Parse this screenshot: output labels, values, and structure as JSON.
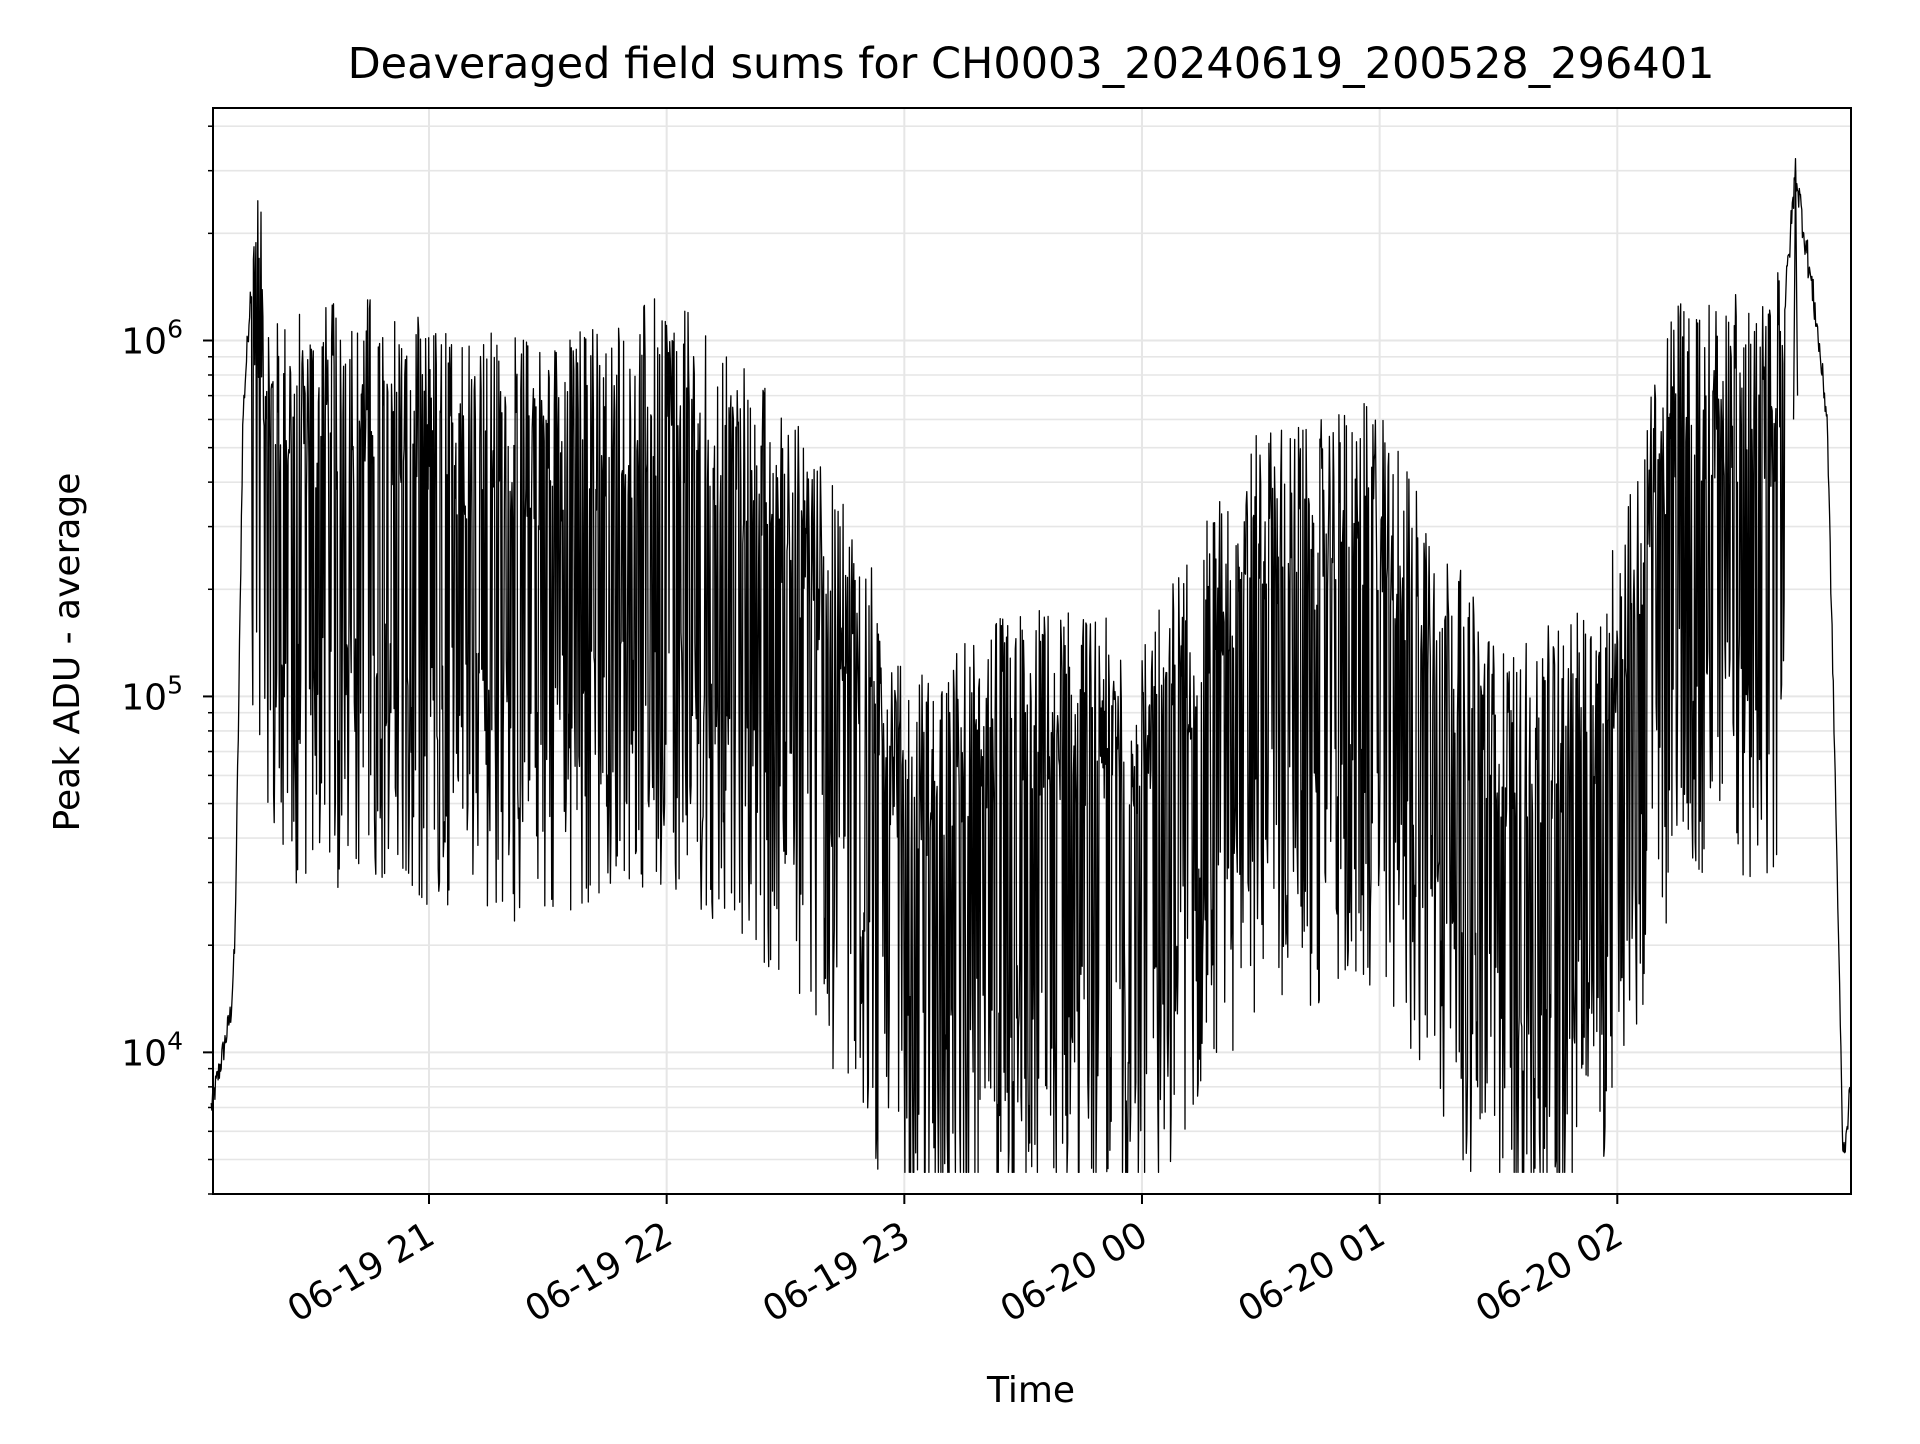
{
  "chart_data": {
    "type": "line",
    "title": "Deaveraged field sums for CH0003_20240619_200528_296401",
    "xlabel": "Time",
    "ylabel": "Peak ADU - average",
    "yscale": "log",
    "ylim": [
      4000,
      4500000
    ],
    "xlim": [
      "2024-06-19 20:05:28",
      "2024-06-20 02:59:00"
    ],
    "grid": true,
    "line_color": "#000000",
    "grid_color": "#e6e6e6",
    "x_tick_labels": [
      "06-19 21",
      "06-19 22",
      "06-19 23",
      "06-20 00",
      "06-20 01",
      "06-20 02"
    ],
    "x_ticks": [
      "2024-06-19 21:00",
      "2024-06-19 22:00",
      "2024-06-19 23:00",
      "2024-06-20 00:00",
      "2024-06-20 01:00",
      "2024-06-20 02:00"
    ],
    "y_ticks": [
      {
        "value": 10000,
        "base": "10",
        "exp": "4"
      },
      {
        "value": 100000,
        "base": "10",
        "exp": "5"
      },
      {
        "value": 1000000,
        "base": "10",
        "exp": "6"
      }
    ],
    "series": [
      {
        "color": "#000000",
        "x": [
          "2024-06-19 20:05",
          "2024-06-19 20:08",
          "2024-06-19 20:10",
          "2024-06-19 20:11",
          "2024-06-19 20:12",
          "2024-06-19 20:13",
          "2024-06-19 20:15",
          "2024-06-19 20:17",
          "2024-06-19 20:20",
          "2024-06-19 20:30",
          "2024-06-19 20:45",
          "2024-06-19 21:00",
          "2024-06-19 21:30",
          "2024-06-19 22:00",
          "2024-06-19 22:30",
          "2024-06-19 22:50",
          "2024-06-19 23:00",
          "2024-06-19 23:30",
          "2024-06-20 00:00",
          "2024-06-20 00:30",
          "2024-06-20 01:00",
          "2024-06-20 01:30",
          "2024-06-20 01:55",
          "2024-06-20 02:15",
          "2024-06-20 02:40",
          "2024-06-20 02:45",
          "2024-06-20 02:50",
          "2024-06-20 02:53",
          "2024-06-20 02:55",
          "2024-06-20 02:57",
          "2024-06-20 02:59"
        ],
        "y": [
          7000,
          10000,
          13000,
          20000,
          100000,
          600000,
          1400000,
          1200000,
          500000,
          550000,
          600000,
          500000,
          450000,
          600000,
          300000,
          120000,
          50000,
          80000,
          70000,
          250000,
          300000,
          60000,
          80000,
          600000,
          600000,
          3000000,
          1200000,
          600000,
          60000,
          5000,
          8000
        ]
      }
    ]
  }
}
